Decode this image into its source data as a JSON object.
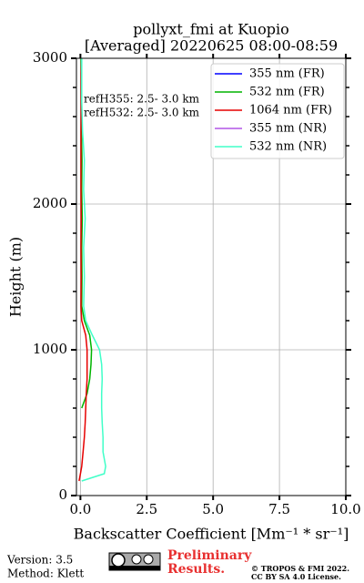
{
  "chart_data": {
    "type": "line",
    "title": "pollyxt_fmi at Kuopio",
    "subtitle": "[Averaged] 20220625 08:00-08:59",
    "x_label": "Backscatter Coefficient [Mm⁻¹ * sr⁻¹]",
    "y_label": "Height (m)",
    "annotations": [
      "refH355:  2.5- 3.0 km",
      "refH532:  2.5- 3.0 km"
    ],
    "y": [
      100,
      150,
      200,
      300,
      400,
      500,
      600,
      700,
      800,
      900,
      1000,
      1100,
      1200,
      1300,
      1500,
      1700,
      1900,
      2100,
      2300,
      2500,
      2700,
      2900,
      3000
    ],
    "series": [
      {
        "name": "355 nm (FR)",
        "color": "#0000ff",
        "values": [
          null,
          null,
          null,
          null,
          null,
          null,
          null,
          null,
          null,
          null,
          null,
          null,
          null,
          null,
          null,
          null,
          null,
          null,
          null,
          null,
          null,
          null,
          null
        ]
      },
      {
        "name": "532 nm (FR)",
        "color": "#00b400",
        "values": [
          null,
          null,
          null,
          null,
          null,
          null,
          0.05,
          0.25,
          0.35,
          0.4,
          0.42,
          0.35,
          0.15,
          0.05,
          0.06,
          0.05,
          0.07,
          0.05,
          0.06,
          0.04,
          0.03,
          0.03,
          0.03
        ]
      },
      {
        "name": "1064 nm (FR)",
        "color": "#e60000",
        "values": [
          -0.05,
          0.0,
          0.05,
          0.1,
          0.15,
          0.18,
          0.2,
          0.22,
          0.25,
          0.25,
          0.25,
          0.2,
          0.05,
          0.02,
          0.03,
          0.02,
          0.03,
          0.02,
          0.02,
          0.02,
          0.03,
          0.03,
          0.05
        ]
      },
      {
        "name": "355 nm (NR)",
        "color": "#b255e6",
        "values": [
          null,
          null,
          null,
          null,
          null,
          null,
          null,
          null,
          null,
          null,
          null,
          null,
          null,
          null,
          null,
          null,
          null,
          null,
          null,
          null,
          null,
          null,
          null
        ]
      },
      {
        "name": "532 nm (NR)",
        "color": "#40ffc8",
        "values": [
          0.05,
          0.9,
          0.95,
          0.85,
          0.85,
          0.82,
          0.8,
          0.8,
          0.82,
          0.8,
          0.72,
          0.45,
          0.2,
          0.12,
          0.15,
          0.12,
          0.18,
          0.12,
          0.15,
          0.08,
          0.05,
          0.05,
          0.05
        ]
      }
    ],
    "xlim": [
      -0.15,
      10.0
    ],
    "ylim": [
      0,
      3000
    ],
    "xticks": [
      {
        "value": 0,
        "label": "0.0"
      },
      {
        "value": 2.5,
        "label": "2.5"
      },
      {
        "value": 5,
        "label": "5.0"
      },
      {
        "value": 7.5,
        "label": "7.5"
      },
      {
        "value": 10,
        "label": "10.0"
      }
    ],
    "yticks": [
      0,
      1000,
      2000,
      3000
    ],
    "yminorticks": [
      200,
      400,
      600,
      800,
      1200,
      1400,
      1600,
      1800,
      2200,
      2400,
      2600,
      2800
    ],
    "grid": true,
    "legend": "upper right"
  },
  "footer": {
    "version": "Version: 3.5",
    "method": "Method: Klett",
    "status": [
      "Preliminary",
      "Results."
    ],
    "copyright": [
      "© TROPOS & FMI 2022.",
      "CC BY SA 4.0 License."
    ]
  }
}
